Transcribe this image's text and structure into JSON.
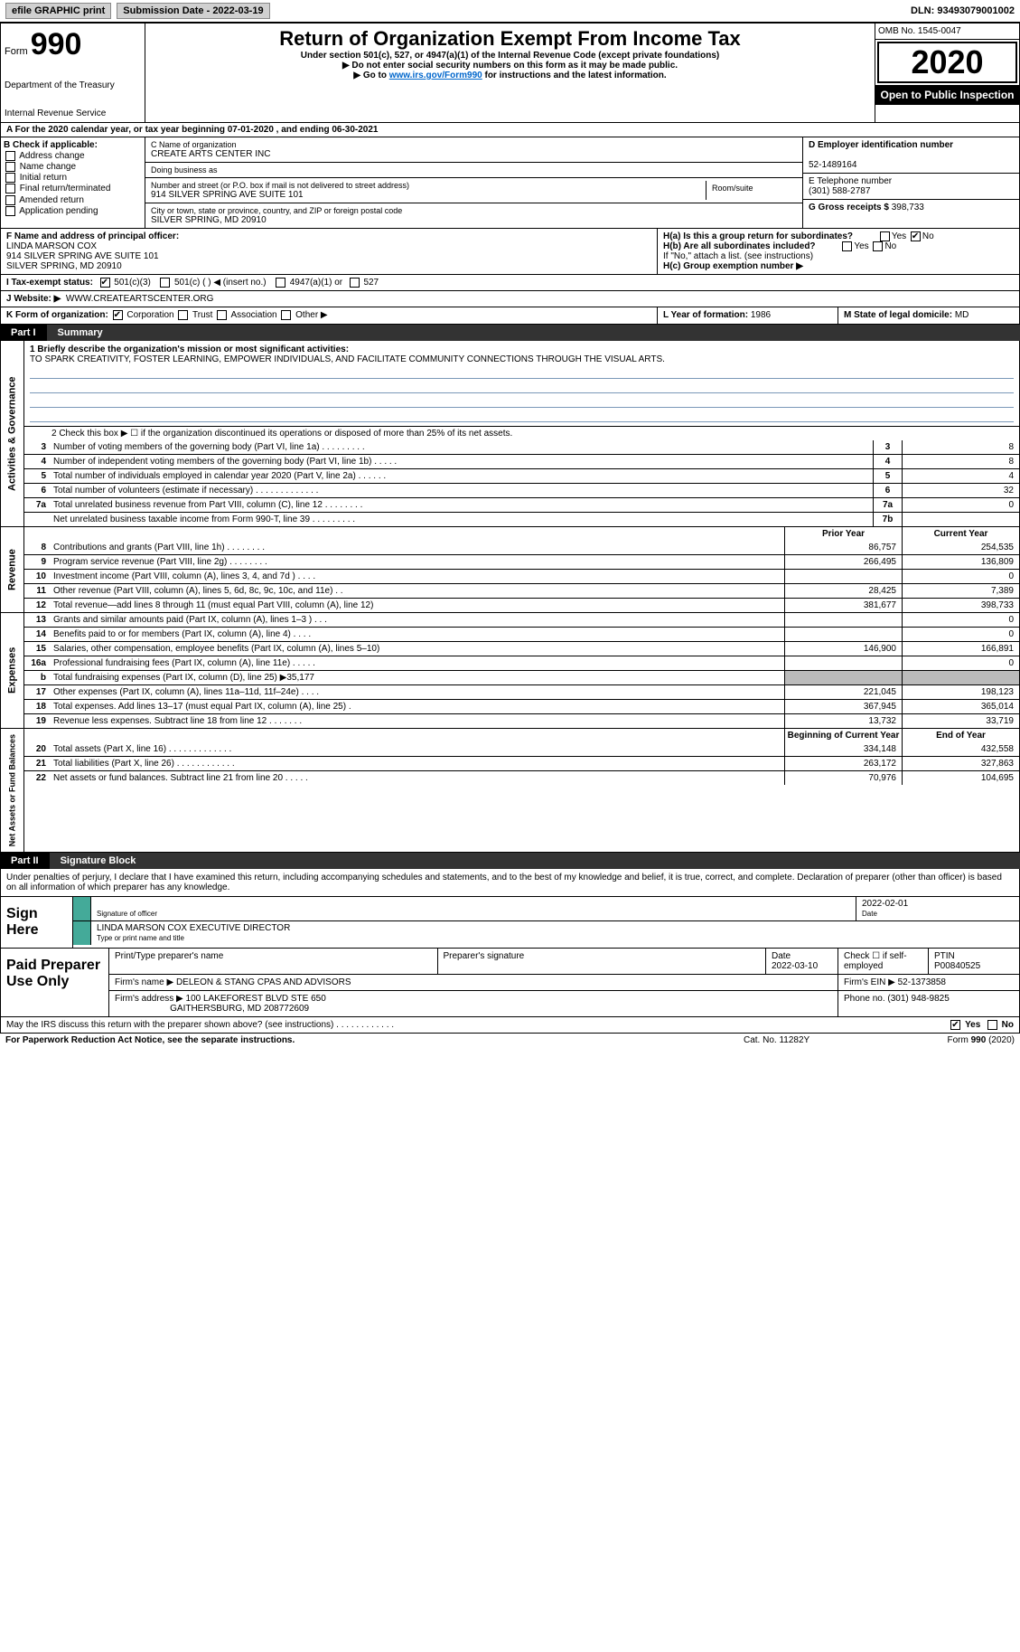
{
  "top": {
    "efile": "efile GRAPHIC print",
    "sub_label": "Submission Date - 2022-03-19",
    "dln": "DLN: 93493079001002"
  },
  "header": {
    "form_prefix": "Form",
    "form_no": "990",
    "dept1": "Department of the Treasury",
    "dept2": "Internal Revenue Service",
    "title": "Return of Organization Exempt From Income Tax",
    "subtitle": "Under section 501(c), 527, or 4947(a)(1) of the Internal Revenue Code (except private foundations)",
    "note1": "▶ Do not enter social security numbers on this form as it may be made public.",
    "note2_pre": "▶ Go to ",
    "note2_link": "www.irs.gov/Form990",
    "note2_post": " for instructions and the latest information.",
    "omb": "OMB No. 1545-0047",
    "year": "2020",
    "open": "Open to Public Inspection"
  },
  "A": {
    "text_pre": "A For the 2020 calendar year, or tax year beginning ",
    "begin": "07-01-2020",
    "mid": " , and ending ",
    "end": "06-30-2021"
  },
  "B": {
    "label": "B Check if applicable:",
    "opts": [
      "Address change",
      "Name change",
      "Initial return",
      "Final return/terminated",
      "Amended return",
      "Application pending"
    ]
  },
  "C": {
    "name_label": "C Name of organization",
    "name": "CREATE ARTS CENTER INC",
    "dba_label": "Doing business as",
    "dba": "",
    "addr_label": "Number and street (or P.O. box if mail is not delivered to street address)",
    "room_label": "Room/suite",
    "addr": "914 SILVER SPRING AVE SUITE 101",
    "city_label": "City or town, state or province, country, and ZIP or foreign postal code",
    "city": "SILVER SPRING, MD  20910"
  },
  "D": {
    "label": "D Employer identification number",
    "ein": "52-1489164"
  },
  "E": {
    "label": "E Telephone number",
    "phone": "(301) 588-2787"
  },
  "G": {
    "label": "G Gross receipts $",
    "amount": "398,733"
  },
  "F": {
    "label": "F  Name and address of principal officer:",
    "name": "LINDA MARSON COX",
    "addr1": "914 SILVER SPRING AVE SUITE 101",
    "addr2": "SILVER SPRING, MD  20910"
  },
  "H": {
    "a": "H(a)  Is this a group return for subordinates?",
    "a_yes": "Yes",
    "a_no": "No",
    "a_val": "No",
    "b": "H(b)  Are all subordinates included?",
    "b_yes": "Yes",
    "b_no": "No",
    "b_note": "If \"No,\" attach a list. (see instructions)",
    "c": "H(c)  Group exemption number ▶"
  },
  "I": {
    "label": "I   Tax-exempt status:",
    "o1": "501(c)(3)",
    "o2": "501(c) (  ) ◀ (insert no.)",
    "o3": "4947(a)(1) or",
    "o4": "527"
  },
  "J": {
    "label": "J   Website: ▶",
    "url": "WWW.CREATEARTSCENTER.ORG"
  },
  "K": {
    "label": "K Form of organization:",
    "o1": "Corporation",
    "o2": "Trust",
    "o3": "Association",
    "o4": "Other ▶"
  },
  "L": {
    "label": "L Year of formation:",
    "val": "1986"
  },
  "M": {
    "label": "M State of legal domicile:",
    "val": "MD"
  },
  "part1": {
    "num": "Part I",
    "title": "Summary"
  },
  "mission": {
    "label": "1  Briefly describe the organization's mission or most significant activities:",
    "text": "TO SPARK CREATIVITY, FOSTER LEARNING, EMPOWER INDIVIDUALS, AND FACILITATE COMMUNITY CONNECTIONS THROUGH THE VISUAL ARTS."
  },
  "line2": "2   Check this box ▶ ☐  if the organization discontinued its operations or disposed of more than 25% of its net assets.",
  "gov_lines": [
    {
      "n": "3",
      "d": "Number of voting members of the governing body (Part VI, line 1a)  .   .   .   .   .   .   .   .   .",
      "box": "3",
      "v": "8"
    },
    {
      "n": "4",
      "d": "Number of independent voting members of the governing body (Part VI, line 1b)   .   .   .   .   .",
      "box": "4",
      "v": "8"
    },
    {
      "n": "5",
      "d": "Total number of individuals employed in calendar year 2020 (Part V, line 2a)   .   .   .   .   .   .",
      "box": "5",
      "v": "4"
    },
    {
      "n": "6",
      "d": "Total number of volunteers (estimate if necessary)   .   .   .   .   .   .   .   .   .   .   .   .   .",
      "box": "6",
      "v": "32"
    },
    {
      "n": "7a",
      "d": "Total unrelated business revenue from Part VIII, column (C), line 12   .   .   .   .   .   .   .   .",
      "box": "7a",
      "v": "0"
    },
    {
      "n": "",
      "d": "Net unrelated business taxable income from Form 990-T, line 39   .   .   .   .   .   .   .   .   .",
      "box": "7b",
      "v": ""
    }
  ],
  "col_hdr": {
    "prior": "Prior Year",
    "current": "Current Year"
  },
  "rev_lines": [
    {
      "n": "8",
      "d": "Contributions and grants (Part VIII, line 1h)   .   .   .   .   .   .   .   .",
      "p": "86,757",
      "c": "254,535"
    },
    {
      "n": "9",
      "d": "Program service revenue (Part VIII, line 2g)   .   .   .   .   .   .   .   .",
      "p": "266,495",
      "c": "136,809"
    },
    {
      "n": "10",
      "d": "Investment income (Part VIII, column (A), lines 3, 4, and 7d )   .   .   .   .",
      "p": "",
      "c": "0"
    },
    {
      "n": "11",
      "d": "Other revenue (Part VIII, column (A), lines 5, 6d, 8c, 9c, 10c, and 11e)   .   .",
      "p": "28,425",
      "c": "7,389"
    },
    {
      "n": "12",
      "d": "Total revenue—add lines 8 through 11 (must equal Part VIII, column (A), line 12)",
      "p": "381,677",
      "c": "398,733"
    }
  ],
  "exp_lines": [
    {
      "n": "13",
      "d": "Grants and similar amounts paid (Part IX, column (A), lines 1–3 )   .   .   .",
      "p": "",
      "c": "0"
    },
    {
      "n": "14",
      "d": "Benefits paid to or for members (Part IX, column (A), line 4)   .   .   .   .",
      "p": "",
      "c": "0"
    },
    {
      "n": "15",
      "d": "Salaries, other compensation, employee benefits (Part IX, column (A), lines 5–10)",
      "p": "146,900",
      "c": "166,891"
    },
    {
      "n": "16a",
      "d": "Professional fundraising fees (Part IX, column (A), line 11e)   .   .   .   .   .",
      "p": "",
      "c": "0"
    },
    {
      "n": "b",
      "d": "Total fundraising expenses (Part IX, column (D), line 25) ▶35,177",
      "p": "shade",
      "c": "shade"
    },
    {
      "n": "17",
      "d": "Other expenses (Part IX, column (A), lines 11a–11d, 11f–24e)   .   .   .   .",
      "p": "221,045",
      "c": "198,123"
    },
    {
      "n": "18",
      "d": "Total expenses. Add lines 13–17 (must equal Part IX, column (A), line 25)   .",
      "p": "367,945",
      "c": "365,014"
    },
    {
      "n": "19",
      "d": "Revenue less expenses. Subtract line 18 from line 12   .   .   .   .   .   .   .",
      "p": "13,732",
      "c": "33,719"
    }
  ],
  "na_hdr": {
    "prior": "Beginning of Current Year",
    "current": "End of Year"
  },
  "na_lines": [
    {
      "n": "20",
      "d": "Total assets (Part X, line 16)   .   .   .   .   .   .   .   .   .   .   .   .   .",
      "p": "334,148",
      "c": "432,558"
    },
    {
      "n": "21",
      "d": "Total liabilities (Part X, line 26)   .   .   .   .   .   .   .   .   .   .   .   .",
      "p": "263,172",
      "c": "327,863"
    },
    {
      "n": "22",
      "d": "Net assets or fund balances. Subtract line 21 from line 20   .   .   .   .   .",
      "p": "70,976",
      "c": "104,695"
    }
  ],
  "tabs": {
    "gov": "Activities & Governance",
    "rev": "Revenue",
    "exp": "Expenses",
    "na": "Net Assets or Fund Balances"
  },
  "part2": {
    "num": "Part II",
    "title": "Signature Block"
  },
  "declare": "Under penalties of perjury, I declare that I have examined this return, including accompanying schedules and statements, and to the best of my knowledge and belief, it is true, correct, and complete. Declaration of preparer (other than officer) is based on all information of which preparer has any knowledge.",
  "sign": {
    "label": "Sign Here",
    "sig_of_officer": "Signature of officer",
    "date": "Date",
    "date_val": "2022-02-01",
    "name": "LINDA MARSON COX  EXECUTIVE DIRECTOR",
    "type_label": "Type or print name and title"
  },
  "prep": {
    "label": "Paid Preparer Use Only",
    "h1": "Print/Type preparer's name",
    "h2": "Preparer's signature",
    "h3": "Date",
    "h3v": "2022-03-10",
    "h4": "Check ☐ if self-employed",
    "h5": "PTIN",
    "h5v": "P00840525",
    "firm_label": "Firm's name   ▶",
    "firm": "DELEON & STANG CPAS AND ADVISORS",
    "ein_label": "Firm's EIN ▶",
    "ein": "52-1373858",
    "addr_label": "Firm's address ▶",
    "addr1": "100 LAKEFOREST BLVD STE 650",
    "addr2": "GAITHERSBURG, MD  208772609",
    "phone_label": "Phone no.",
    "phone": "(301) 948-9825"
  },
  "discuss": {
    "q": "May the IRS discuss this return with the preparer shown above? (see instructions)   .   .   .   .   .   .   .   .   .   .   .   .",
    "yes": "Yes",
    "no": "No"
  },
  "footer": {
    "l": "For Paperwork Reduction Act Notice, see the separate instructions.",
    "c": "Cat. No. 11282Y",
    "r": "Form 990 (2020)"
  }
}
